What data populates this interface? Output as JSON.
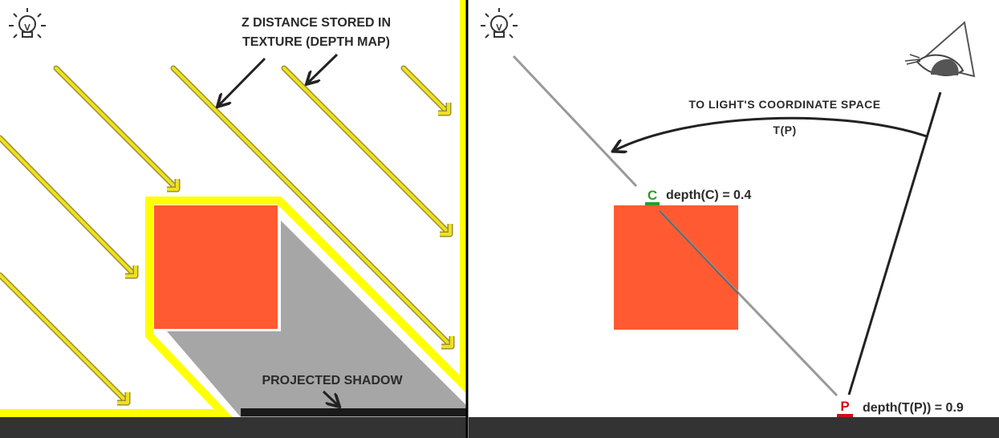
{
  "left_panel": {
    "depth_map_label_line1": "Z DISTANCE STORED IN",
    "depth_map_label_line2": "TEXTURE (DEPTH MAP)",
    "shadow_label": "PROJECTED SHADOW",
    "icon": "light-bulb-icon"
  },
  "right_panel": {
    "transform_label": "TO LIGHT'S COORDINATE SPACE",
    "transform_formula": "T(P)",
    "closest_point_letter": "C",
    "closest_depth_label": "depth(C) = 0.4",
    "fragment_point_letter": "P",
    "fragment_depth_label": "depth(T(P)) = 0.9",
    "icons": [
      "light-bulb-icon",
      "eye-camera-icon"
    ]
  },
  "colors": {
    "light_ray": "#f0e020",
    "light_ray_outline": "#9a9230",
    "lit_outline": "#ffff00",
    "object": "#ff5a32",
    "shadow": "#a6a6a6",
    "divider": "#000000",
    "bottom_bar": "#333333",
    "closest_marker": "#2e9a2e",
    "fragment_marker": "#cc1111"
  }
}
